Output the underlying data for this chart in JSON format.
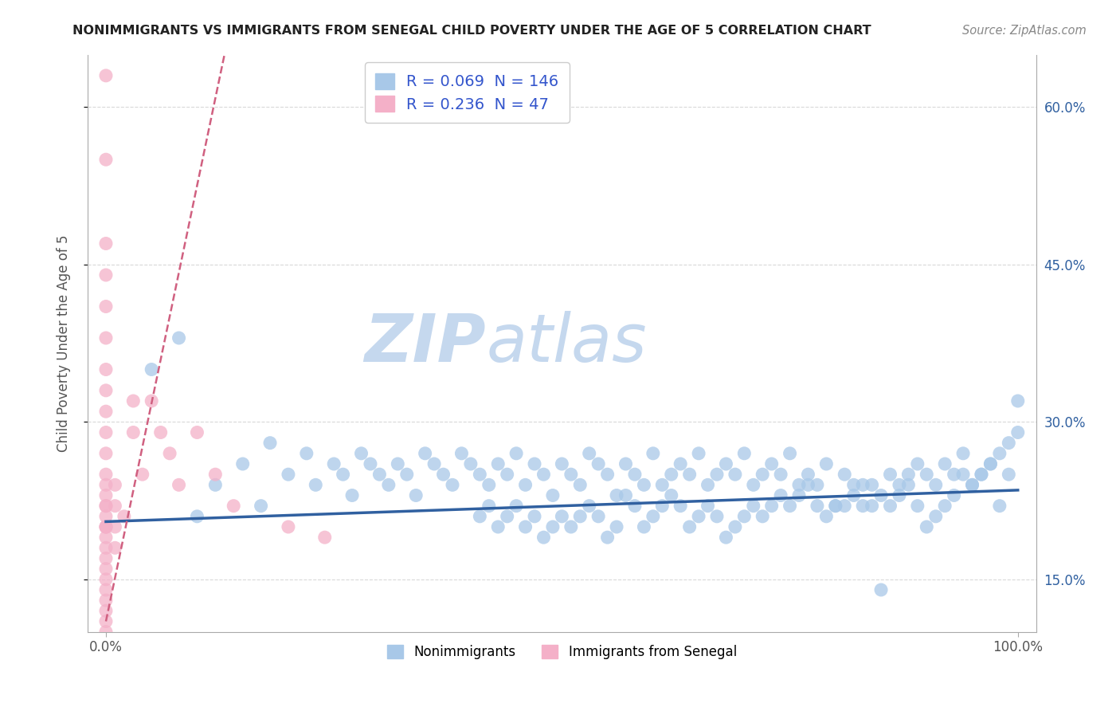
{
  "title": "NONIMMIGRANTS VS IMMIGRANTS FROM SENEGAL CHILD POVERTY UNDER THE AGE OF 5 CORRELATION CHART",
  "source": "Source: ZipAtlas.com",
  "xlabel": "",
  "ylabel": "Child Poverty Under the Age of 5",
  "watermark_zip": "ZIP",
  "watermark_atlas": "atlas",
  "xlim": [
    -2,
    102
  ],
  "ylim": [
    10,
    65
  ],
  "yticks": [
    15,
    30,
    45,
    60
  ],
  "ytick_labels": [
    "15.0%",
    "30.0%",
    "45.0%",
    "60.0%"
  ],
  "xtick_positions": [
    0,
    100
  ],
  "xtick_labels": [
    "0.0%",
    "100.0%"
  ],
  "legend1_label": "Nonimmigrants",
  "legend2_label": "Immigrants from Senegal",
  "R1": "0.069",
  "N1": "146",
  "R2": "0.236",
  "N2": "47",
  "blue_color": "#a8c8e8",
  "pink_color": "#f4b0c8",
  "blue_line_color": "#3060a0",
  "pink_line_color": "#d06080",
  "background_color": "#ffffff",
  "grid_color": "#d0d0d0",
  "title_color": "#222222",
  "source_color": "#888888",
  "legend_text_color": "#3355cc",
  "watermark_color": "#c5d8ee",
  "blue_scatter_x": [
    5,
    8,
    10,
    12,
    15,
    17,
    18,
    20,
    22,
    23,
    25,
    26,
    27,
    28,
    29,
    30,
    31,
    32,
    33,
    34,
    35,
    36,
    37,
    38,
    39,
    40,
    41,
    42,
    43,
    44,
    45,
    46,
    47,
    48,
    49,
    50,
    51,
    52,
    53,
    54,
    55,
    56,
    57,
    58,
    59,
    60,
    61,
    62,
    63,
    64,
    65,
    66,
    67,
    68,
    69,
    70,
    71,
    72,
    73,
    74,
    75,
    76,
    77,
    78,
    79,
    80,
    81,
    82,
    83,
    84,
    85,
    86,
    87,
    88,
    89,
    90,
    91,
    92,
    93,
    94,
    95,
    96,
    97,
    98,
    99,
    100,
    100,
    99,
    98,
    97,
    96,
    95,
    94,
    93,
    92,
    91,
    90,
    89,
    88,
    87,
    86,
    85,
    84,
    83,
    82,
    81,
    80,
    79,
    78,
    77,
    76,
    75,
    74,
    73,
    72,
    71,
    70,
    69,
    68,
    67,
    66,
    65,
    64,
    63,
    62,
    61,
    60,
    59,
    58,
    57,
    56,
    55,
    54,
    53,
    52,
    51,
    50,
    49,
    48,
    47,
    46,
    45,
    44,
    43,
    42,
    41
  ],
  "blue_scatter_y": [
    35,
    38,
    21,
    24,
    26,
    22,
    28,
    25,
    27,
    24,
    26,
    25,
    23,
    27,
    26,
    25,
    24,
    26,
    25,
    23,
    27,
    26,
    25,
    24,
    27,
    26,
    25,
    24,
    26,
    25,
    27,
    24,
    26,
    25,
    23,
    26,
    25,
    24,
    27,
    26,
    25,
    23,
    26,
    25,
    24,
    27,
    24,
    25,
    26,
    25,
    27,
    24,
    25,
    26,
    25,
    27,
    24,
    25,
    26,
    25,
    27,
    24,
    25,
    24,
    26,
    22,
    25,
    24,
    22,
    24,
    23,
    25,
    24,
    25,
    26,
    25,
    24,
    26,
    25,
    27,
    24,
    25,
    26,
    22,
    25,
    32,
    29,
    28,
    27,
    26,
    25,
    24,
    25,
    23,
    22,
    21,
    20,
    22,
    24,
    23,
    22,
    14,
    22,
    24,
    23,
    22,
    22,
    21,
    22,
    24,
    23,
    22,
    23,
    22,
    21,
    22,
    21,
    20,
    19,
    21,
    22,
    21,
    20,
    22,
    23,
    22,
    21,
    20,
    22,
    23,
    20,
    19,
    21,
    22,
    21,
    20,
    21,
    20,
    19,
    21,
    20,
    22,
    21,
    20,
    22,
    21
  ],
  "pink_scatter_x": [
    0,
    0,
    0,
    0,
    0,
    0,
    0,
    0,
    0,
    0,
    0,
    0,
    0,
    0,
    0,
    0,
    0,
    0,
    0,
    0,
    0,
    0,
    0,
    0,
    0,
    0,
    0,
    0,
    1,
    1,
    1,
    1,
    2,
    3,
    3,
    4,
    5,
    6,
    7,
    8,
    10,
    12,
    14,
    20,
    24,
    0,
    0
  ],
  "pink_scatter_y": [
    63,
    55,
    47,
    44,
    41,
    38,
    35,
    33,
    31,
    29,
    27,
    25,
    24,
    23,
    22,
    21,
    20,
    19,
    18,
    17,
    16,
    15,
    14,
    13,
    12,
    11,
    10,
    20,
    24,
    22,
    20,
    18,
    21,
    32,
    29,
    25,
    32,
    29,
    27,
    24,
    29,
    25,
    22,
    20,
    19,
    20,
    22
  ],
  "blue_trend_x": [
    0,
    100
  ],
  "blue_trend_y": [
    20.5,
    23.5
  ],
  "pink_trend_x": [
    0,
    13
  ],
  "pink_trend_y": [
    11,
    65
  ]
}
